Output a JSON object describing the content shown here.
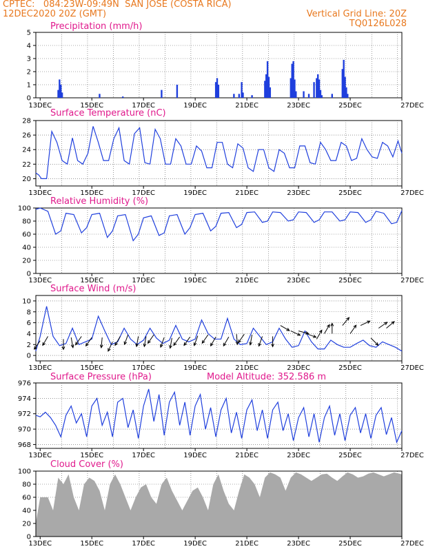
{
  "header": {
    "line1": "CPTEC:   084:23W-09:49N  SAN JOSE (COSTA RICA)",
    "line2_left": "12DEC2020 20Z (GMT)",
    "line2_right": "Vertical Grid Line: 20Z",
    "line3_right": "TQ0126L028"
  },
  "colors": {
    "header": "#e8781e",
    "title": "#e0198c",
    "line": "#1f3fdd",
    "cloud": "#a9a9a9",
    "arrow": "#000000"
  },
  "x_axis": {
    "start_day": 12.833,
    "end_day": 27.0,
    "tick_days": [
      13,
      15,
      17,
      19,
      21,
      23,
      25,
      27
    ],
    "tick_labels": [
      "13DEC",
      "15DEC",
      "17DEC",
      "19DEC",
      "21DEC",
      "23DEC",
      "25DEC",
      "27DEC"
    ],
    "grid_days": [
      13.833,
      14.833,
      15.833,
      16.833,
      17.833,
      18.833,
      19.833,
      20.833,
      21.833,
      22.833,
      23.833,
      24.833,
      25.833,
      26.833
    ]
  },
  "panels": {
    "precip": {
      "title": "Precipitation (mm/h)",
      "yticks": [
        "0",
        "1",
        "2",
        "3",
        "4",
        "5"
      ]
    },
    "temp": {
      "title": "Surface Temperature (nC)",
      "yticks": [
        "20",
        "22",
        "24",
        "26",
        "28"
      ]
    },
    "rh": {
      "title": "Relative Humidity (%)",
      "yticks": [
        "0",
        "20",
        "40",
        "60",
        "80",
        "100"
      ]
    },
    "wind": {
      "title": "Surface Wind (m/s)",
      "yticks": [
        "0",
        "2",
        "4",
        "6",
        "8",
        "10"
      ]
    },
    "pres": {
      "title": "Surface Pressure (hPa)",
      "altitude": "Model Altitude: 352.586 m",
      "yticks": [
        "968",
        "970",
        "972",
        "974",
        "976"
      ]
    },
    "cloud": {
      "title": "Cloud Cover (%)",
      "yticks": [
        "0",
        "20",
        "40",
        "60",
        "80",
        "100"
      ]
    }
  },
  "chart_data": [
    {
      "type": "bar",
      "title": "Precipitation (mm/h)",
      "ylim": [
        0,
        5
      ],
      "x": [
        13.7,
        13.75,
        13.8,
        13.85,
        15.3,
        16.2,
        17.7,
        18.3,
        19.8,
        19.85,
        19.9,
        20.5,
        20.7,
        20.8,
        20.85,
        21.2,
        21.7,
        21.75,
        21.8,
        21.85,
        21.9,
        22.7,
        22.75,
        22.8,
        22.85,
        22.9,
        23.2,
        23.4,
        23.6,
        23.7,
        23.75,
        23.8,
        23.85,
        23.9,
        24.3,
        24.7,
        24.75,
        24.8,
        24.85,
        24.9
      ],
      "values": [
        0.6,
        1.4,
        1.0,
        0.4,
        0.3,
        0.1,
        0.6,
        1.0,
        1.2,
        1.5,
        1.0,
        0.3,
        0.3,
        1.2,
        0.4,
        0.2,
        1.3,
        1.8,
        2.8,
        1.6,
        0.8,
        1.5,
        2.6,
        2.8,
        1.4,
        0.5,
        0.5,
        0.3,
        1.2,
        1.5,
        1.8,
        1.4,
        0.6,
        0.2,
        0.3,
        2.2,
        2.9,
        1.6,
        0.8,
        0.3
      ]
    },
    {
      "type": "line",
      "title": "Surface Temperature (nC)",
      "ylim": [
        19,
        28
      ],
      "x": [
        12.83,
        12.95,
        13.05,
        13.25,
        13.45,
        13.65,
        13.85,
        14.05,
        14.25,
        14.45,
        14.65,
        14.85,
        15.05,
        15.25,
        15.45,
        15.65,
        15.85,
        16.05,
        16.25,
        16.45,
        16.65,
        16.85,
        17.05,
        17.25,
        17.45,
        17.65,
        17.85,
        18.05,
        18.25,
        18.45,
        18.65,
        18.85,
        19.05,
        19.25,
        19.45,
        19.65,
        19.85,
        20.05,
        20.25,
        20.45,
        20.65,
        20.85,
        21.05,
        21.25,
        21.45,
        21.65,
        21.85,
        22.05,
        22.25,
        22.45,
        22.65,
        22.85,
        23.05,
        23.25,
        23.45,
        23.65,
        23.85,
        24.05,
        24.25,
        24.45,
        24.65,
        24.85,
        25.05,
        25.25,
        25.45,
        25.65,
        25.85,
        26.05,
        26.25,
        26.45,
        26.65,
        26.85,
        27.0
      ],
      "values": [
        20.8,
        20.5,
        20.0,
        20.0,
        26.5,
        25.0,
        22.5,
        22.0,
        25.6,
        22.5,
        22.0,
        23.5,
        27.2,
        25.0,
        22.5,
        22.5,
        25.5,
        27.0,
        22.5,
        22.0,
        26.2,
        27.0,
        22.2,
        22.0,
        26.8,
        25.5,
        22.0,
        22.0,
        25.5,
        24.5,
        22.0,
        22.0,
        24.5,
        23.8,
        21.5,
        21.5,
        25.0,
        25.0,
        22.0,
        21.5,
        24.8,
        24.2,
        21.5,
        21.0,
        24.0,
        24.0,
        21.5,
        21.0,
        24.0,
        23.5,
        21.5,
        21.5,
        24.5,
        24.5,
        22.2,
        22.0,
        25.0,
        24.0,
        22.5,
        22.5,
        25.0,
        24.5,
        22.5,
        22.8,
        25.5,
        24.0,
        23.0,
        22.8,
        25.0,
        24.5,
        23.0,
        25.2,
        23.5
      ]
    },
    {
      "type": "line",
      "title": "Relative Humidity (%)",
      "ylim": [
        0,
        100
      ],
      "x": [
        12.83,
        13.0,
        13.3,
        13.6,
        13.8,
        14.0,
        14.3,
        14.6,
        14.8,
        15.0,
        15.3,
        15.6,
        15.8,
        16.0,
        16.3,
        16.6,
        16.8,
        17.0,
        17.3,
        17.6,
        17.8,
        18.0,
        18.3,
        18.6,
        18.8,
        19.0,
        19.3,
        19.6,
        19.8,
        20.0,
        20.3,
        20.6,
        20.8,
        21.0,
        21.3,
        21.6,
        21.8,
        22.0,
        22.3,
        22.6,
        22.8,
        23.0,
        23.3,
        23.6,
        23.8,
        24.0,
        24.3,
        24.6,
        24.8,
        25.0,
        25.3,
        25.6,
        25.8,
        26.0,
        26.3,
        26.6,
        26.8,
        27.0
      ],
      "values": [
        98,
        100,
        95,
        60,
        65,
        92,
        90,
        62,
        70,
        90,
        92,
        55,
        65,
        88,
        90,
        50,
        60,
        85,
        88,
        58,
        62,
        88,
        90,
        60,
        70,
        90,
        92,
        65,
        72,
        92,
        93,
        70,
        75,
        93,
        94,
        78,
        80,
        94,
        93,
        80,
        82,
        94,
        93,
        78,
        82,
        94,
        94,
        80,
        82,
        94,
        93,
        78,
        82,
        95,
        92,
        76,
        78,
        96
      ]
    },
    {
      "type": "line",
      "title": "Surface Wind (m/s)",
      "ylim": [
        0,
        10
      ],
      "x": [
        12.83,
        13.0,
        13.25,
        13.5,
        13.75,
        14.0,
        14.25,
        14.5,
        14.75,
        15.0,
        15.25,
        15.5,
        15.75,
        16.0,
        16.25,
        16.5,
        16.75,
        17.0,
        17.25,
        17.5,
        17.75,
        18.0,
        18.25,
        18.5,
        18.75,
        19.0,
        19.25,
        19.5,
        19.75,
        20.0,
        20.25,
        20.5,
        20.75,
        21.0,
        21.25,
        21.5,
        21.75,
        22.0,
        22.25,
        22.5,
        22.75,
        23.0,
        23.25,
        23.5,
        23.75,
        24.0,
        24.25,
        24.5,
        24.75,
        25.0,
        25.25,
        25.5,
        25.75,
        26.0,
        26.25,
        26.5,
        26.75,
        27.0
      ],
      "values": [
        0.8,
        3.5,
        9.0,
        3.5,
        1.8,
        2.2,
        5.0,
        2.0,
        2.5,
        3.0,
        7.2,
        4.5,
        2.0,
        2.5,
        5.0,
        3.0,
        2.0,
        2.8,
        5.0,
        3.2,
        2.2,
        2.8,
        5.5,
        3.0,
        2.5,
        3.0,
        6.5,
        4.0,
        3.0,
        3.0,
        6.8,
        3.0,
        2.0,
        2.2,
        5.0,
        3.5,
        2.0,
        2.5,
        5.0,
        3.0,
        1.5,
        1.8,
        4.5,
        2.5,
        1.2,
        1.2,
        2.8,
        2.0,
        1.5,
        1.5,
        2.2,
        2.8,
        1.8,
        1.5,
        2.5,
        2.0,
        1.5,
        0.8
      ]
    },
    {
      "type": "line",
      "title": "Surface Pressure (hPa)",
      "ylim": [
        967.5,
        976
      ],
      "x": [
        12.83,
        13.0,
        13.2,
        13.4,
        13.6,
        13.8,
        14.0,
        14.2,
        14.4,
        14.6,
        14.8,
        15.0,
        15.2,
        15.4,
        15.6,
        15.8,
        16.0,
        16.2,
        16.4,
        16.6,
        16.8,
        17.0,
        17.2,
        17.4,
        17.6,
        17.8,
        18.0,
        18.2,
        18.4,
        18.6,
        18.8,
        19.0,
        19.2,
        19.4,
        19.6,
        19.8,
        20.0,
        20.2,
        20.4,
        20.6,
        20.8,
        21.0,
        21.2,
        21.4,
        21.6,
        21.8,
        22.0,
        22.2,
        22.4,
        22.6,
        22.8,
        23.0,
        23.2,
        23.4,
        23.6,
        23.8,
        24.0,
        24.2,
        24.4,
        24.6,
        24.8,
        25.0,
        25.2,
        25.4,
        25.6,
        25.8,
        26.0,
        26.2,
        26.4,
        26.6,
        26.8,
        27.0
      ],
      "values": [
        971.8,
        971.6,
        972.2,
        971.5,
        970.5,
        969.0,
        971.8,
        973.0,
        970.8,
        972.0,
        969.0,
        973.0,
        974.0,
        970.5,
        972.2,
        969.0,
        973.5,
        974.0,
        970.2,
        972.5,
        968.8,
        973.0,
        975.2,
        971.0,
        974.5,
        969.2,
        973.5,
        974.8,
        970.5,
        973.5,
        969.2,
        973.0,
        974.5,
        970.0,
        972.8,
        969.0,
        972.5,
        974.0,
        969.5,
        972.2,
        968.8,
        972.5,
        973.8,
        969.8,
        972.5,
        968.8,
        972.5,
        973.5,
        969.8,
        972.0,
        968.5,
        971.5,
        972.8,
        969.0,
        972.0,
        968.3,
        971.5,
        973.0,
        969.2,
        972.0,
        968.5,
        971.8,
        972.8,
        969.5,
        972.0,
        968.8,
        971.8,
        972.8,
        969.3,
        971.5,
        968.3,
        969.8
      ]
    },
    {
      "type": "area",
      "title": "Cloud Cover (%)",
      "ylim": [
        0,
        100
      ],
      "x": [
        12.83,
        13.0,
        13.3,
        13.5,
        13.7,
        13.9,
        14.1,
        14.3,
        14.5,
        14.7,
        14.9,
        15.1,
        15.3,
        15.5,
        15.7,
        15.9,
        16.1,
        16.3,
        16.5,
        16.7,
        16.9,
        17.1,
        17.3,
        17.5,
        17.7,
        17.9,
        18.1,
        18.3,
        18.5,
        18.7,
        18.9,
        19.1,
        19.3,
        19.5,
        19.7,
        19.9,
        20.1,
        20.3,
        20.5,
        20.7,
        20.9,
        21.1,
        21.3,
        21.5,
        21.7,
        21.9,
        22.1,
        22.3,
        22.5,
        22.7,
        22.9,
        23.1,
        23.3,
        23.5,
        23.7,
        23.9,
        24.1,
        24.3,
        24.5,
        24.7,
        24.9,
        25.1,
        25.3,
        25.5,
        25.7,
        25.9,
        26.1,
        26.3,
        26.5,
        26.7,
        26.9,
        27.0
      ],
      "values": [
        20,
        60,
        60,
        40,
        90,
        80,
        95,
        60,
        40,
        80,
        90,
        85,
        70,
        40,
        80,
        95,
        80,
        60,
        40,
        60,
        75,
        80,
        60,
        50,
        80,
        90,
        70,
        55,
        40,
        55,
        70,
        75,
        60,
        40,
        80,
        95,
        70,
        50,
        40,
        70,
        95,
        90,
        80,
        60,
        90,
        98,
        95,
        90,
        70,
        90,
        98,
        95,
        90,
        85,
        90,
        95,
        96,
        90,
        85,
        92,
        98,
        95,
        90,
        92,
        96,
        98,
        95,
        92,
        95,
        98,
        96,
        95
      ]
    },
    {
      "type": "scatter",
      "title": "Surface Wind direction arrows",
      "x": [
        13.0,
        13.3,
        13.9,
        14.2,
        14.6,
        15.0,
        15.4,
        15.8,
        16.1,
        16.4,
        16.8,
        17.1,
        17.4,
        17.8,
        18.1,
        18.4,
        18.8,
        19.1,
        19.5,
        19.8,
        20.3,
        20.6,
        20.9,
        21.2,
        21.6,
        22.0,
        22.3,
        22.7,
        23.0,
        23.3,
        23.7,
        24.0,
        24.3,
        24.7,
        25.0,
        25.4,
        25.8,
        26.1,
        26.4
      ],
      "values": [
        2.7,
        3.5,
        3.0,
        3.3,
        3.5,
        3.3,
        3.3,
        2.5,
        3.5,
        3.8,
        3.5,
        3.5,
        3.8,
        3.3,
        3.2,
        3.4,
        3.4,
        3.6,
        3.8,
        3.4,
        3.4,
        3.9,
        3.9,
        3.8,
        3.5,
        3.5,
        5.5,
        4.5,
        4.5,
        4.0,
        3.0,
        4.0,
        4.0,
        5.5,
        4.0,
        5.5,
        3.2,
        5.0,
        5.0
      ],
      "angle_deg": [
        235,
        240,
        270,
        280,
        235,
        235,
        265,
        245,
        240,
        250,
        260,
        260,
        235,
        250,
        260,
        235,
        235,
        250,
        235,
        240,
        240,
        275,
        235,
        260,
        250,
        270,
        330,
        335,
        345,
        340,
        60,
        60,
        90,
        50,
        55,
        25,
        315,
        35,
        40
      ]
    }
  ]
}
